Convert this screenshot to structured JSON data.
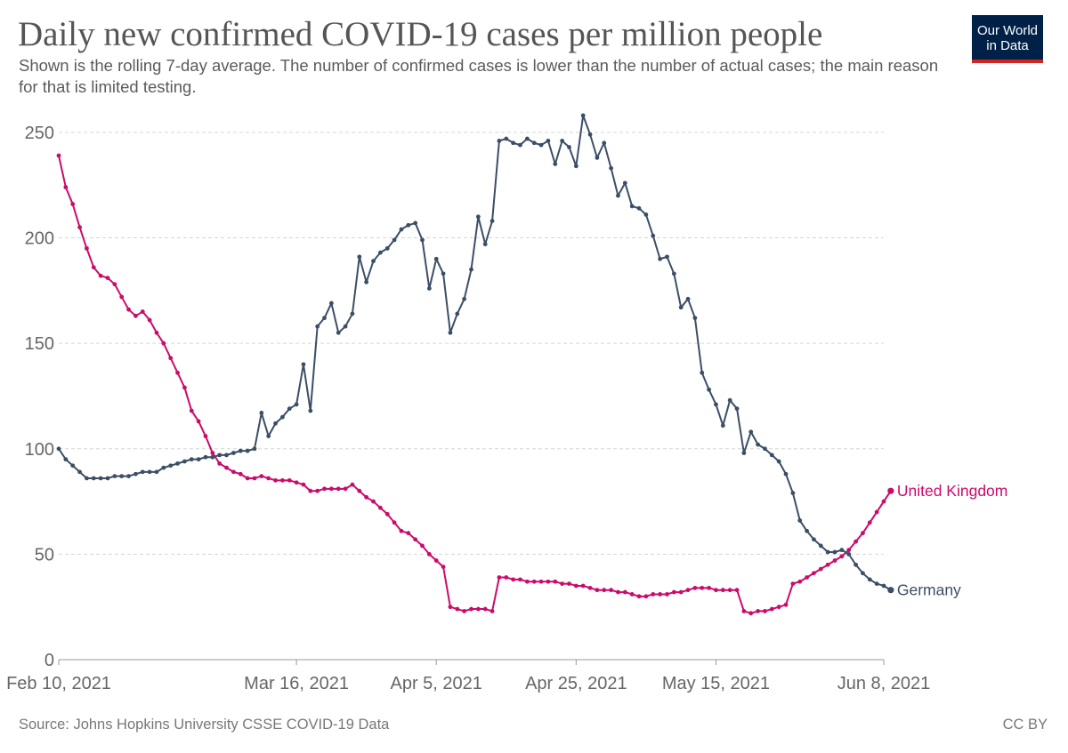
{
  "header": {
    "title": "Daily new confirmed COVID-19 cases per million people",
    "subtitle": "Shown is the rolling 7-day average. The number of confirmed cases is lower than the number of actual cases; the main reason for that is limited testing."
  },
  "logo": {
    "line1": "Our World",
    "line2": "in Data"
  },
  "footer": {
    "source": "Source: Johns Hopkins University CSSE COVID-19 Data",
    "license": "CC BY"
  },
  "chart_data": {
    "type": "line",
    "title": "Daily new confirmed COVID-19 cases per million people",
    "xlabel": "",
    "ylabel": "",
    "ylim": [
      0,
      260
    ],
    "yticks": [
      0,
      50,
      100,
      150,
      200,
      250
    ],
    "x_start_date": "2021-02-10",
    "x_range_days": [
      0,
      118
    ],
    "xticks": [
      {
        "day": 0,
        "label": "Feb 10, 2021"
      },
      {
        "day": 34,
        "label": "Mar 16, 2021"
      },
      {
        "day": 54,
        "label": "Apr 5, 2021"
      },
      {
        "day": 74,
        "label": "Apr 25, 2021"
      },
      {
        "day": 94,
        "label": "May 15, 2021"
      },
      {
        "day": 118,
        "label": "Jun 8, 2021"
      }
    ],
    "grid": true,
    "legend": "inline-end-labels",
    "series": [
      {
        "name": "United Kingdom",
        "color": "#ca0b6a",
        "values": [
          239,
          224,
          216,
          205,
          195,
          186,
          182,
          181,
          178,
          172,
          166,
          163,
          165,
          161,
          155,
          150,
          143,
          136,
          129,
          118,
          113,
          106,
          98,
          93,
          91,
          89,
          88,
          86,
          86,
          87,
          86,
          85,
          85,
          85,
          84,
          83,
          80,
          80,
          81,
          81,
          81,
          81,
          83,
          80,
          77,
          75,
          72,
          69,
          65,
          61,
          60,
          57,
          54,
          50,
          47,
          44,
          25,
          24,
          23,
          24,
          24,
          24,
          23,
          39,
          39,
          38,
          38,
          37,
          37,
          37,
          37,
          37,
          36,
          36,
          35,
          35,
          34,
          33,
          33,
          33,
          32,
          32,
          31,
          30,
          30,
          31,
          31,
          31,
          32,
          32,
          33,
          34,
          34,
          34,
          33,
          33,
          33,
          33,
          23,
          22,
          23,
          23,
          24,
          25,
          26,
          36,
          37,
          39,
          41,
          43,
          45,
          47,
          49,
          52,
          56,
          60,
          65,
          70,
          75,
          80
        ]
      },
      {
        "name": "Germany",
        "color": "#3c4e66",
        "values": [
          100,
          95,
          92,
          89,
          86,
          86,
          86,
          86,
          87,
          87,
          87,
          88,
          89,
          89,
          89,
          91,
          92,
          93,
          94,
          95,
          95,
          96,
          96,
          97,
          97,
          98,
          99,
          99,
          100,
          117,
          106,
          112,
          115,
          119,
          121,
          140,
          118,
          158,
          162,
          169,
          155,
          158,
          164,
          191,
          179,
          189,
          193,
          195,
          199,
          204,
          206,
          207,
          199,
          176,
          190,
          183,
          155,
          164,
          171,
          185,
          210,
          197,
          208,
          246,
          247,
          245,
          244,
          247,
          245,
          244,
          246,
          235,
          246,
          243,
          234,
          258,
          249,
          238,
          245,
          233,
          220,
          226,
          215,
          214,
          211,
          201,
          190,
          191,
          183,
          167,
          171,
          162,
          136,
          128,
          121,
          111,
          123,
          119,
          98,
          108,
          102,
          100,
          97,
          94,
          88,
          79,
          66,
          61,
          57,
          54,
          51,
          51,
          52,
          50,
          45,
          41,
          38,
          36,
          35,
          33
        ]
      }
    ]
  }
}
